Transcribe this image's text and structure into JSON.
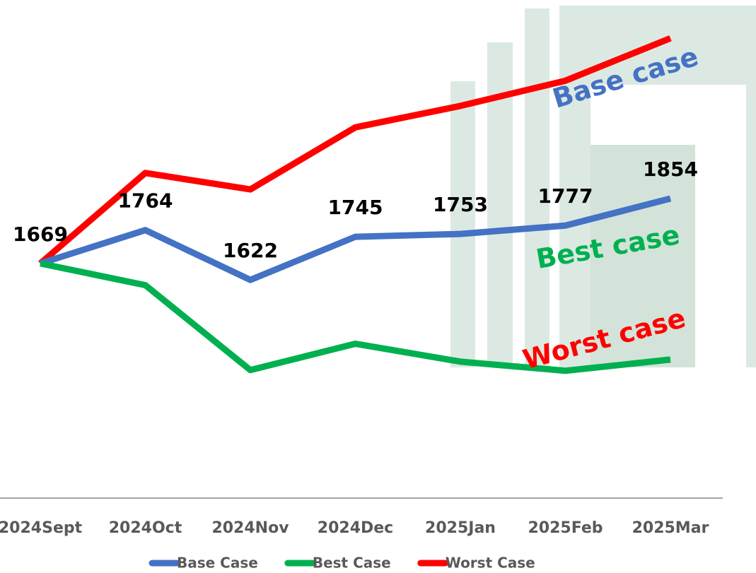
{
  "chart_data": {
    "type": "line",
    "categories": [
      "2024Sept",
      "2024Oct",
      "2024Nov",
      "2024Dec",
      "2025Jan",
      "2025Feb",
      "2025Mar"
    ],
    "ylim": [
      1000,
      2420
    ],
    "series": [
      {
        "name": "Base Case",
        "label": "Base case",
        "color": "#4472c4",
        "values": [
          1669,
          1764,
          1622,
          1745,
          1753,
          1777,
          1854
        ],
        "show_values": true
      },
      {
        "name": "Best Case",
        "label": "Best case",
        "color": "#00b050",
        "values": [
          1669,
          1607,
          1365,
          1440,
          1389,
          1363,
          1395
        ],
        "show_values": false
      },
      {
        "name": "Worst Case",
        "label": "Worst case",
        "color": "#ff0000",
        "values": [
          1669,
          1927,
          1880,
          2057,
          2118,
          2190,
          2311
        ],
        "show_values": false
      }
    ]
  }
}
